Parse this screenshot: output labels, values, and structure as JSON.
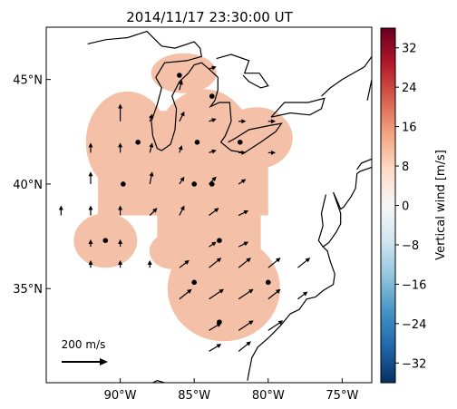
{
  "chart_data": {
    "type": "heatmap",
    "title": "2014/11/17 23:30:00 UT",
    "xlim": [
      -95,
      -73
    ],
    "ylim": [
      30.5,
      47.5
    ],
    "x_ticks": [
      -90,
      -85,
      -80,
      -75
    ],
    "x_tick_labels": [
      "90°W",
      "85°W",
      "80°W",
      "75°W"
    ],
    "y_ticks": [
      35,
      40,
      45
    ],
    "y_tick_labels": [
      "35°N",
      "40°N",
      "45°N"
    ],
    "fill_value": 8,
    "fill_color": "#f4c0a7",
    "colorbar": {
      "label": "Vertical wind [m/s]",
      "range": [
        -36,
        36
      ],
      "ticks": [
        32,
        24,
        16,
        8,
        0,
        -8,
        -16,
        -24,
        -32
      ],
      "tick_labels": [
        "32",
        "24",
        "16",
        "8",
        "0",
        "−8",
        "−16",
        "−24",
        "−32"
      ],
      "colors": [
        "#67001f",
        "#b2182b",
        "#d6604d",
        "#f4a582",
        "#fddbc7",
        "#f7f7f7",
        "#d1e5f0",
        "#92c5de",
        "#4393c3",
        "#2166ac",
        "#053061"
      ]
    },
    "reference_arrow": {
      "label": "200 m/s",
      "speed": 200
    },
    "stations": [
      {
        "lon": -88.8,
        "lat": 42.0
      },
      {
        "lon": -89.8,
        "lat": 40.0
      },
      {
        "lon": -84.8,
        "lat": 42.0
      },
      {
        "lon": -81.9,
        "lat": 42.0
      },
      {
        "lon": -85.0,
        "lat": 40.0
      },
      {
        "lon": -83.8,
        "lat": 40.0
      },
      {
        "lon": -91.0,
        "lat": 37.3
      },
      {
        "lon": -83.3,
        "lat": 37.3
      },
      {
        "lon": -85.0,
        "lat": 35.3
      },
      {
        "lon": -80.0,
        "lat": 35.3
      },
      {
        "lon": -83.3,
        "lat": 33.4
      },
      {
        "lon": -86.0,
        "lat": 45.2
      },
      {
        "lon": -83.8,
        "lat": 44.2
      }
    ],
    "wind_vectors": [
      {
        "lon": -90.0,
        "lat": 43.0,
        "u": 0,
        "v": 35
      },
      {
        "lon": -88.0,
        "lat": 43.0,
        "u": 5,
        "v": 15
      },
      {
        "lon": -86.0,
        "lat": 43.0,
        "u": 10,
        "v": 20
      },
      {
        "lon": -84.0,
        "lat": 43.0,
        "u": 15,
        "v": 5
      },
      {
        "lon": -82.0,
        "lat": 43.0,
        "u": 15,
        "v": 0
      },
      {
        "lon": -80.0,
        "lat": 43.0,
        "u": 15,
        "v": 0
      },
      {
        "lon": -92.0,
        "lat": 41.5,
        "u": 0,
        "v": 20
      },
      {
        "lon": -90.0,
        "lat": 41.5,
        "u": 0,
        "v": 20
      },
      {
        "lon": -88.0,
        "lat": 41.5,
        "u": 5,
        "v": 20
      },
      {
        "lon": -86.0,
        "lat": 41.5,
        "u": 5,
        "v": 15
      },
      {
        "lon": -84.0,
        "lat": 41.5,
        "u": 15,
        "v": 5
      },
      {
        "lon": -82.0,
        "lat": 41.5,
        "u": 15,
        "v": 0
      },
      {
        "lon": -80.0,
        "lat": 41.5,
        "u": 15,
        "v": 0
      },
      {
        "lon": -92.0,
        "lat": 40.0,
        "u": 0,
        "v": 25
      },
      {
        "lon": -88.0,
        "lat": 40.0,
        "u": 5,
        "v": 25
      },
      {
        "lon": -86.0,
        "lat": 40.0,
        "u": 10,
        "v": 15
      },
      {
        "lon": -84.0,
        "lat": 40.0,
        "u": 15,
        "v": 15
      },
      {
        "lon": -82.0,
        "lat": 40.0,
        "u": 15,
        "v": 10
      },
      {
        "lon": -94.0,
        "lat": 38.5,
        "u": 0,
        "v": 20
      },
      {
        "lon": -92.0,
        "lat": 38.5,
        "u": 0,
        "v": 20
      },
      {
        "lon": -90.0,
        "lat": 38.5,
        "u": 0,
        "v": 20
      },
      {
        "lon": -88.0,
        "lat": 38.5,
        "u": 15,
        "v": 15
      },
      {
        "lon": -86.0,
        "lat": 38.5,
        "u": 10,
        "v": 20
      },
      {
        "lon": -84.0,
        "lat": 38.5,
        "u": 20,
        "v": 15
      },
      {
        "lon": -82.0,
        "lat": 38.5,
        "u": 20,
        "v": 10
      },
      {
        "lon": -92.0,
        "lat": 37.0,
        "u": 0,
        "v": 15
      },
      {
        "lon": -90.0,
        "lat": 37.0,
        "u": 0,
        "v": 15
      },
      {
        "lon": -84.0,
        "lat": 37.0,
        "u": 15,
        "v": 10
      },
      {
        "lon": -82.0,
        "lat": 37.0,
        "u": 20,
        "v": 10
      },
      {
        "lon": -92.0,
        "lat": 36.0,
        "u": 0,
        "v": 15
      },
      {
        "lon": -90.0,
        "lat": 36.0,
        "u": 0,
        "v": 15
      },
      {
        "lon": -88.0,
        "lat": 36.0,
        "u": 0,
        "v": 15
      },
      {
        "lon": -86.0,
        "lat": 36.0,
        "u": 20,
        "v": 15
      },
      {
        "lon": -84.0,
        "lat": 36.0,
        "u": 25,
        "v": 20
      },
      {
        "lon": -82.0,
        "lat": 36.0,
        "u": 25,
        "v": 20
      },
      {
        "lon": -80.0,
        "lat": 36.0,
        "u": 25,
        "v": 20
      },
      {
        "lon": -78.0,
        "lat": 36.0,
        "u": 25,
        "v": 20
      },
      {
        "lon": -86.0,
        "lat": 34.5,
        "u": 25,
        "v": 20
      },
      {
        "lon": -84.0,
        "lat": 34.5,
        "u": 30,
        "v": 20
      },
      {
        "lon": -82.0,
        "lat": 34.5,
        "u": 30,
        "v": 20
      },
      {
        "lon": -80.0,
        "lat": 34.5,
        "u": 25,
        "v": 20
      },
      {
        "lon": -78.0,
        "lat": 34.5,
        "u": 20,
        "v": 15
      },
      {
        "lon": -84.0,
        "lat": 33.0,
        "u": 25,
        "v": 15
      },
      {
        "lon": -82.0,
        "lat": 33.0,
        "u": 30,
        "v": 20
      },
      {
        "lon": -80.0,
        "lat": 33.0,
        "u": 30,
        "v": 20
      },
      {
        "lon": -84.0,
        "lat": 32.0,
        "u": 25,
        "v": 15
      },
      {
        "lon": -82.0,
        "lat": 32.0,
        "u": 25,
        "v": 20
      },
      {
        "lon": -86.0,
        "lat": 44.5,
        "u": 5,
        "v": 20
      },
      {
        "lon": -84.0,
        "lat": 45.5,
        "u": 15,
        "v": 5
      }
    ]
  }
}
